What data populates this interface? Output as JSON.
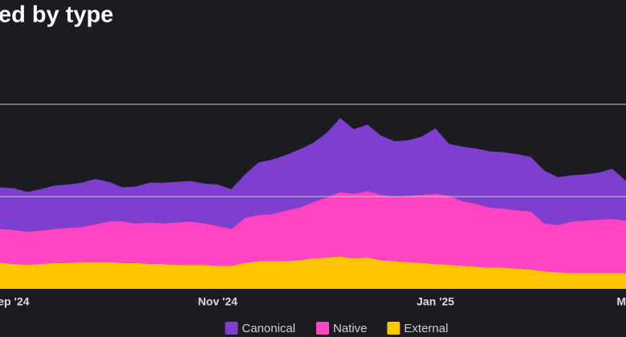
{
  "chart_data": {
    "type": "stacked-area",
    "title": "ed by type",
    "categories": [
      null,
      "ep '24",
      null,
      null,
      null,
      null,
      null,
      null,
      null,
      null,
      null,
      null,
      null,
      null,
      null,
      null,
      "Nov '24",
      null,
      null,
      null,
      null,
      null,
      null,
      null,
      null,
      null,
      null,
      null,
      null,
      null,
      null,
      null,
      "Jan '25",
      null,
      null,
      null,
      null,
      null,
      null,
      null,
      null,
      null,
      null,
      null,
      null,
      null,
      "M"
    ],
    "series": [
      {
        "name": "Canonical",
        "color": "#7e3fcf",
        "values": [
          0.45,
          0.45,
          0.43,
          0.45,
          0.47,
          0.47,
          0.48,
          0.49,
          0.43,
          0.37,
          0.4,
          0.43,
          0.44,
          0.44,
          0.44,
          0.43,
          0.45,
          0.43,
          0.47,
          0.57,
          0.59,
          0.6,
          0.63,
          0.64,
          0.7,
          0.8,
          0.7,
          0.72,
          0.64,
          0.6,
          0.6,
          0.63,
          0.71,
          0.56,
          0.59,
          0.6,
          0.61,
          0.61,
          0.61,
          0.59,
          0.57,
          0.52,
          0.5,
          0.5,
          0.51,
          0.54,
          0.43
        ]
      },
      {
        "name": "Native",
        "color": "#ff45c3",
        "values": [
          0.37,
          0.37,
          0.36,
          0.36,
          0.37,
          0.38,
          0.38,
          0.41,
          0.44,
          0.45,
          0.43,
          0.45,
          0.44,
          0.46,
          0.47,
          0.45,
          0.43,
          0.4,
          0.49,
          0.5,
          0.51,
          0.55,
          0.57,
          0.61,
          0.65,
          0.7,
          0.7,
          0.72,
          0.71,
          0.7,
          0.72,
          0.74,
          0.76,
          0.75,
          0.7,
          0.68,
          0.65,
          0.64,
          0.63,
          0.63,
          0.52,
          0.51,
          0.56,
          0.57,
          0.58,
          0.59,
          0.57
        ]
      },
      {
        "name": "External",
        "color": "#ffc400",
        "values": [
          0.28,
          0.27,
          0.26,
          0.27,
          0.28,
          0.28,
          0.29,
          0.29,
          0.29,
          0.28,
          0.28,
          0.27,
          0.27,
          0.26,
          0.26,
          0.26,
          0.25,
          0.25,
          0.28,
          0.3,
          0.3,
          0.3,
          0.31,
          0.33,
          0.34,
          0.35,
          0.33,
          0.34,
          0.31,
          0.3,
          0.29,
          0.28,
          0.27,
          0.26,
          0.25,
          0.24,
          0.23,
          0.23,
          0.22,
          0.21,
          0.19,
          0.18,
          0.17,
          0.17,
          0.17,
          0.17,
          0.17
        ]
      }
    ],
    "ylim": [
      0,
      2.6
    ],
    "yticks": [
      1,
      2
    ],
    "grid": true
  }
}
